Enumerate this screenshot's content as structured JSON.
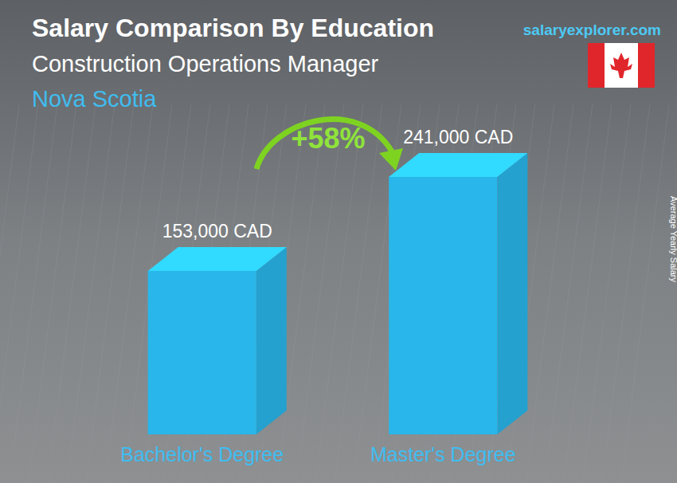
{
  "chart_data": {
    "type": "bar",
    "title": "Salary Comparison By Education",
    "subtitle": "Construction Operations Manager",
    "annotations": [
      "Nova Scotia",
      "salaryexplorer.com",
      "+58%"
    ],
    "y_label": "Average Yearly Salary",
    "categories": [
      "Bachelor's Degree",
      "Master's Degree"
    ],
    "values": [
      153000,
      241000
    ],
    "value_labels": [
      "153,000 CAD",
      "241,000 CAD"
    ],
    "color": "#29b6ea",
    "data_labels": true,
    "tick_labels": "x"
  }
}
